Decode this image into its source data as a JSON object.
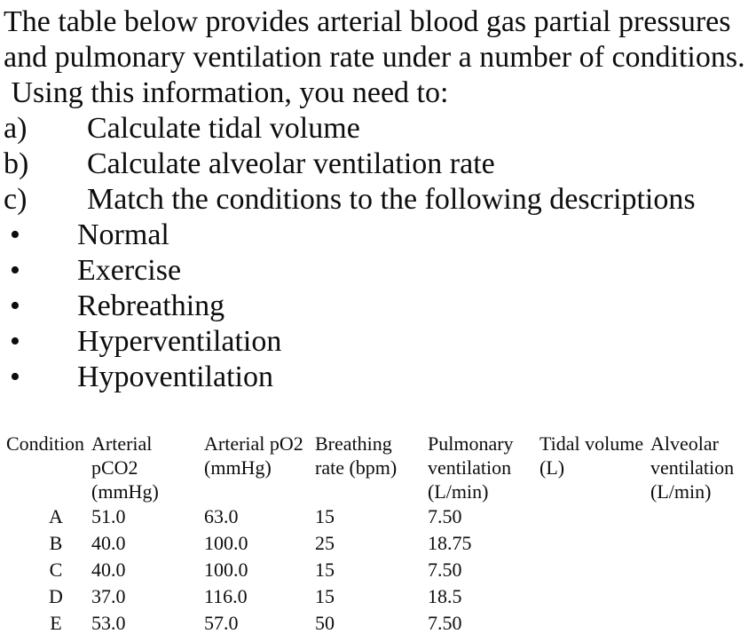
{
  "colors": {
    "text": "#0d0d0d",
    "background": "#ffffff"
  },
  "intro": {
    "line1": "The table below provides arterial blood gas partial pressures",
    "line2": "and pulmonary ventilation rate under a number of conditions.",
    "line3": " Using this information, you need to:"
  },
  "tasks": [
    {
      "label": "a)",
      "text": "Calculate tidal volume"
    },
    {
      "label": "b)",
      "text": "Calculate alveolar ventilation rate"
    },
    {
      "label": "c)",
      "text": "Match the conditions to the following descriptions"
    }
  ],
  "bullet_marker": "•",
  "bullets": [
    "Normal",
    "Exercise",
    "Rebreathing",
    "Hyperventilation",
    "Hypoventilation"
  ],
  "table": {
    "headers": [
      {
        "name": "condition",
        "text": "Condition"
      },
      {
        "name": "arterial-pco2",
        "text": "Arterial\npCO2\n(mmHg)"
      },
      {
        "name": "arterial-po2",
        "text": "Arterial pO2\n(mmHg)"
      },
      {
        "name": "breathing-rate",
        "text": "Breathing\nrate (bpm)"
      },
      {
        "name": "pulmonary-ventilation",
        "text": "Pulmonary\nventilation\n(L/min)"
      },
      {
        "name": "tidal-volume",
        "text": "Tidal volume\n(L)"
      },
      {
        "name": "alveolar-ventilation",
        "text": "Alveolar\nventilation\n(L/min)"
      }
    ],
    "rows": [
      {
        "condition": "A",
        "arterial_pco2": "51.0",
        "arterial_po2": "63.0",
        "breathing_rate": "15",
        "pulmonary_ventilation": "7.50",
        "tidal_volume": "",
        "alveolar_ventilation": ""
      },
      {
        "condition": "B",
        "arterial_pco2": "40.0",
        "arterial_po2": "100.0",
        "breathing_rate": "25",
        "pulmonary_ventilation": "18.75",
        "tidal_volume": "",
        "alveolar_ventilation": ""
      },
      {
        "condition": "C",
        "arterial_pco2": "40.0",
        "arterial_po2": "100.0",
        "breathing_rate": "15",
        "pulmonary_ventilation": "7.50",
        "tidal_volume": "",
        "alveolar_ventilation": ""
      },
      {
        "condition": "D",
        "arterial_pco2": "37.0",
        "arterial_po2": "116.0",
        "breathing_rate": "15",
        "pulmonary_ventilation": "18.5",
        "tidal_volume": "",
        "alveolar_ventilation": ""
      },
      {
        "condition": "E",
        "arterial_pco2": "53.0",
        "arterial_po2": "57.0",
        "breathing_rate": "50",
        "pulmonary_ventilation": "7.50",
        "tidal_volume": "",
        "alveolar_ventilation": ""
      }
    ]
  }
}
